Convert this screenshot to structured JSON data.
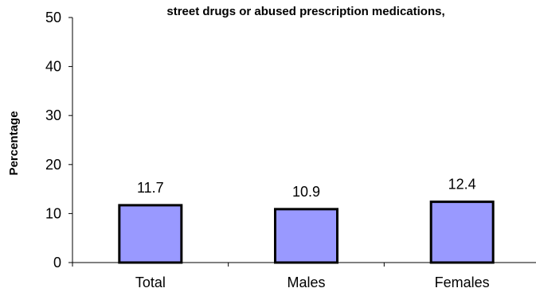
{
  "chart_data": {
    "type": "bar",
    "title": "street drugs or abused prescription medications,",
    "xlabel": "",
    "ylabel": "Percentage",
    "categories": [
      "Total",
      "Males",
      "Females"
    ],
    "values": [
      11.7,
      10.9,
      12.4
    ],
    "data_labels": [
      "11.7",
      "10.9",
      "12.4"
    ],
    "ylim": [
      0,
      50
    ],
    "yticks": [
      "0",
      "10",
      "20",
      "30",
      "40",
      "50"
    ],
    "grid": false,
    "legend": "none",
    "bar_color": "#9999ff",
    "bar_edge_color": "#000000"
  }
}
